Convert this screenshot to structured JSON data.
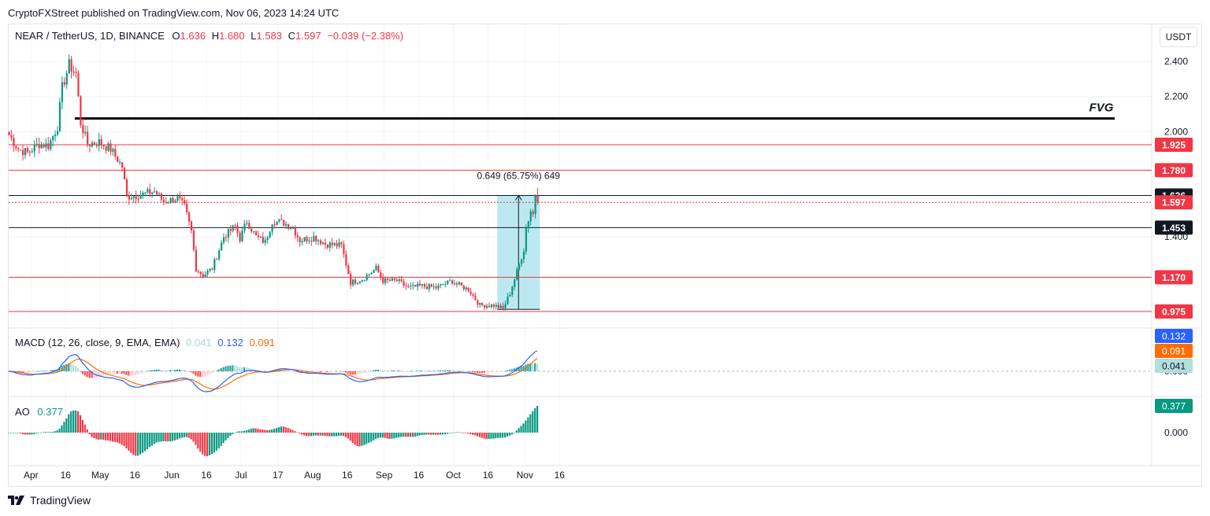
{
  "header": {
    "attribution": "CryptoFXStreet published on TradingView.com, Nov 06, 2023 14:24 UTC",
    "symbol": "NEAR / TetherUS, 1D, BINANCE",
    "ohlc": {
      "o_label": "O",
      "o": "1.636",
      "h_label": "H",
      "h": "1.680",
      "l_label": "L",
      "l": "1.583",
      "c_label": "C",
      "c": "1.597",
      "change": "−0.039 (−2.38%)"
    },
    "currency": "USDT"
  },
  "footer": {
    "brand": "TradingView"
  },
  "colors": {
    "up": "#089981",
    "down": "#f23645",
    "macd": "#2962ff",
    "signal": "#ff6d00",
    "measure_fill": "#a5e2ec"
  },
  "price_axis": {
    "ticks": [
      "2.400",
      "2.200",
      "2.000",
      "1.400"
    ],
    "ylim": [
      0.93,
      2.49
    ]
  },
  "time_axis": {
    "labels": [
      "Apr",
      "16",
      "May",
      "16",
      "Jun",
      "16",
      "Jul",
      "17",
      "Aug",
      "16",
      "Sep",
      "16",
      "Oct",
      "16",
      "Nov",
      "16"
    ]
  },
  "levels": [
    {
      "label": "1.925",
      "value": 1.925,
      "color": "#f23645",
      "style": "solid"
    },
    {
      "label": "1.780",
      "value": 1.78,
      "color": "#f23645",
      "style": "solid"
    },
    {
      "label": "1.636",
      "value": 1.636,
      "color": "#131722",
      "style": "solid"
    },
    {
      "label": "1.597",
      "value": 1.597,
      "color": "#f23645",
      "style": "dotted"
    },
    {
      "label": "1.453",
      "value": 1.453,
      "color": "#131722",
      "style": "solid"
    },
    {
      "label": "1.170",
      "value": 1.17,
      "color": "#f23645",
      "style": "solid"
    },
    {
      "label": "0.975",
      "value": 0.975,
      "color": "#f23645",
      "style": "solid"
    }
  ],
  "fvg": {
    "label": "FVG",
    "value": 2.075
  },
  "measure": {
    "label": "0.649 (65.75%) 649",
    "from": 0.987,
    "to": 1.636
  },
  "macd": {
    "legend_name": "MACD (12, 26, close, 9, EMA, EMA)",
    "hist_value": "0.041",
    "macd_value": "0.132",
    "signal_value": "0.091",
    "axis_tick": "0.000"
  },
  "ao": {
    "legend_name": "AO",
    "value": "0.377",
    "axis_tick": "0.000"
  },
  "chart_data": {
    "type": "candlestick",
    "title": "NEAR / TetherUS, 1D, BINANCE",
    "x_start": "2023-03-22",
    "x_end": "2023-11-06",
    "anchors": [
      {
        "date": "2023-03-22",
        "close": 1.98
      },
      {
        "date": "2023-03-26",
        "close": 1.9
      },
      {
        "date": "2023-03-30",
        "close": 1.88
      },
      {
        "date": "2023-04-04",
        "close": 1.93
      },
      {
        "date": "2023-04-08",
        "close": 1.92
      },
      {
        "date": "2023-04-12",
        "close": 2.03
      },
      {
        "date": "2023-04-14",
        "close": 2.25
      },
      {
        "date": "2023-04-17",
        "close": 2.38
      },
      {
        "date": "2023-04-20",
        "close": 2.33
      },
      {
        "date": "2023-04-22",
        "close": 2.05
      },
      {
        "date": "2023-04-25",
        "close": 1.93
      },
      {
        "date": "2023-04-30",
        "close": 1.94
      },
      {
        "date": "2023-05-05",
        "close": 1.9
      },
      {
        "date": "2023-05-10",
        "close": 1.8
      },
      {
        "date": "2023-05-12",
        "close": 1.63
      },
      {
        "date": "2023-05-18",
        "close": 1.64
      },
      {
        "date": "2023-05-24",
        "close": 1.66
      },
      {
        "date": "2023-05-28",
        "close": 1.6
      },
      {
        "date": "2023-06-03",
        "close": 1.62
      },
      {
        "date": "2023-06-06",
        "close": 1.57
      },
      {
        "date": "2023-06-09",
        "close": 1.43
      },
      {
        "date": "2023-06-11",
        "close": 1.22
      },
      {
        "date": "2023-06-14",
        "close": 1.18
      },
      {
        "date": "2023-06-18",
        "close": 1.22
      },
      {
        "date": "2023-06-23",
        "close": 1.4
      },
      {
        "date": "2023-06-28",
        "close": 1.46
      },
      {
        "date": "2023-06-30",
        "close": 1.39
      },
      {
        "date": "2023-07-03",
        "close": 1.49
      },
      {
        "date": "2023-07-07",
        "close": 1.4
      },
      {
        "date": "2023-07-11",
        "close": 1.37
      },
      {
        "date": "2023-07-14",
        "close": 1.49
      },
      {
        "date": "2023-07-19",
        "close": 1.48
      },
      {
        "date": "2023-07-23",
        "close": 1.45
      },
      {
        "date": "2023-07-26",
        "close": 1.38
      },
      {
        "date": "2023-08-01",
        "close": 1.4
      },
      {
        "date": "2023-08-06",
        "close": 1.36
      },
      {
        "date": "2023-08-13",
        "close": 1.35
      },
      {
        "date": "2023-08-17",
        "close": 1.14
      },
      {
        "date": "2023-08-22",
        "close": 1.16
      },
      {
        "date": "2023-08-28",
        "close": 1.22
      },
      {
        "date": "2023-08-31",
        "close": 1.15
      },
      {
        "date": "2023-09-06",
        "close": 1.15
      },
      {
        "date": "2023-09-11",
        "close": 1.11
      },
      {
        "date": "2023-09-17",
        "close": 1.12
      },
      {
        "date": "2023-09-23",
        "close": 1.11
      },
      {
        "date": "2023-09-30",
        "close": 1.15
      },
      {
        "date": "2023-10-02",
        "close": 1.13
      },
      {
        "date": "2023-10-07",
        "close": 1.1
      },
      {
        "date": "2023-10-12",
        "close": 1.01
      },
      {
        "date": "2023-10-18",
        "close": 1.01
      },
      {
        "date": "2023-10-22",
        "close": 0.99
      },
      {
        "date": "2023-10-25",
        "close": 1.08
      },
      {
        "date": "2023-10-28",
        "close": 1.2
      },
      {
        "date": "2023-10-31",
        "close": 1.33
      },
      {
        "date": "2023-11-01",
        "close": 1.45
      },
      {
        "date": "2023-11-03",
        "close": 1.55
      },
      {
        "date": "2023-11-04",
        "close": 1.53
      },
      {
        "date": "2023-11-05",
        "close": 1.636
      },
      {
        "date": "2023-11-06",
        "close": 1.597
      }
    ],
    "last_candle": {
      "date": "2023-11-06",
      "open": 1.636,
      "high": 1.68,
      "low": 1.583,
      "close": 1.597
    }
  }
}
